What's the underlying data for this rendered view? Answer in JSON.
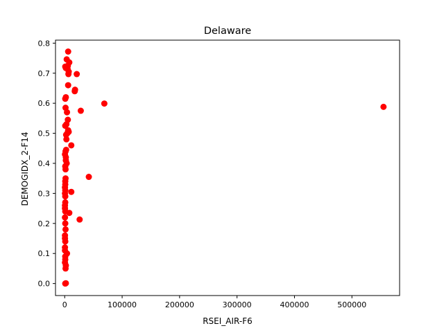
{
  "chart_data": {
    "type": "scatter",
    "title": "Delaware",
    "xlabel": "RSEI_AIR-F6",
    "ylabel": "DEMOGIDX_2-F14",
    "xlim": [
      -16000,
      583000
    ],
    "ylim": [
      -0.04,
      0.81
    ],
    "x_ticks": [
      0,
      100000,
      200000,
      300000,
      400000,
      500000
    ],
    "x_tick_labels": [
      "0",
      "100000",
      "200000",
      "300000",
      "400000",
      "500000"
    ],
    "y_ticks": [
      0.0,
      0.1,
      0.2,
      0.3,
      0.4,
      0.5,
      0.6,
      0.7,
      0.8
    ],
    "y_tick_labels": [
      "0.0",
      "0.1",
      "0.2",
      "0.3",
      "0.4",
      "0.5",
      "0.6",
      "0.7",
      "0.8"
    ],
    "grid": false,
    "marker_color": "#ff0000",
    "series": [
      {
        "x": [
          6000,
          1000,
          3500,
          8000,
          5500,
          7000,
          6500,
          5000,
          21000,
          2000,
          6000,
          18000,
          17500,
          1000,
          2000,
          69000,
          28000,
          1500,
          4000,
          5500,
          3000,
          6000,
          4500,
          1000,
          3000,
          2500,
          7000,
          11500,
          1500,
          2500,
          2000,
          500,
          2000,
          3500,
          1500,
          1000,
          42000,
          1500,
          1000,
          1000,
          500,
          500,
          1000,
          1000,
          11500,
          1000,
          500,
          8000,
          500,
          1000,
          26000,
          500,
          1000,
          1500,
          500,
          500,
          1000,
          500,
          4000,
          500,
          1000,
          1000,
          2000,
          500,
          1500,
          1000,
          2000,
          555000
        ],
        "y": [
          0.772,
          0.722,
          0.746,
          0.736,
          0.725,
          0.705,
          0.697,
          0.715,
          0.697,
          0.717,
          0.66,
          0.645,
          0.64,
          0.615,
          0.62,
          0.599,
          0.575,
          0.585,
          0.57,
          0.545,
          0.53,
          0.51,
          0.5,
          0.525,
          0.48,
          0.495,
          0.505,
          0.46,
          0.44,
          0.445,
          0.42,
          0.43,
          0.41,
          0.4,
          0.38,
          0.39,
          0.355,
          0.35,
          0.34,
          0.33,
          0.32,
          0.3,
          0.29,
          0.31,
          0.305,
          0.27,
          0.26,
          0.235,
          0.25,
          0.24,
          0.213,
          0.22,
          0.2,
          0.18,
          0.16,
          0.15,
          0.14,
          0.12,
          0.1,
          0.11,
          0.09,
          0.08,
          0.06,
          0.07,
          0.05,
          0.0,
          0.001,
          0.588
        ]
      }
    ]
  }
}
